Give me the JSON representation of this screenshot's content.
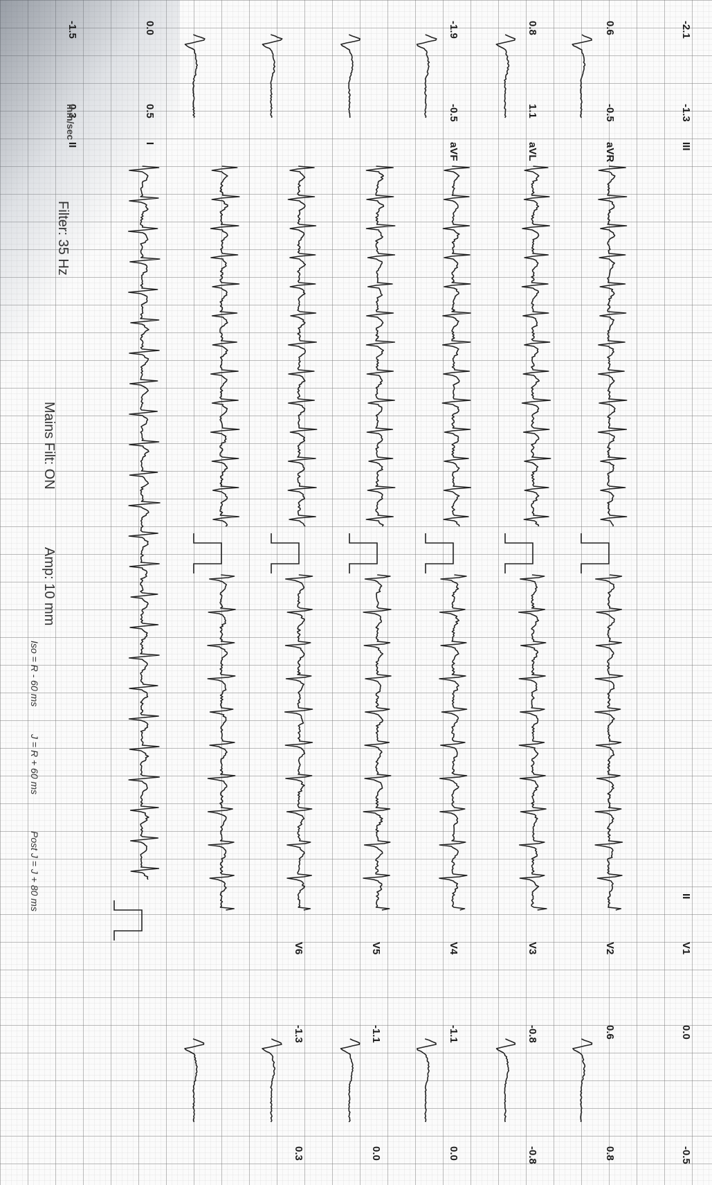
{
  "leads": {
    "I": {
      "label": "I",
      "val_a": "0.0",
      "val_b": "0.5"
    },
    "II": {
      "label": "II",
      "val_a": "-1.5",
      "val_b": "0.3"
    },
    "III": {
      "label": "III",
      "val_a": "-2.1",
      "val_b": "-1.3"
    },
    "aVR": {
      "label": "aVR",
      "val_a": "0.6",
      "val_b": "-0.5"
    },
    "aVL": {
      "label": "aVL",
      "val_a": "0.8",
      "val_b": "1.1"
    },
    "aVF": {
      "label": "aVF",
      "val_a": "-1.9",
      "val_b": "-0.5"
    },
    "V1": {
      "label": "V1",
      "val_a": "0.0",
      "val_b": "-0.5"
    },
    "V2": {
      "label": "V2",
      "val_a": "0.6",
      "val_b": "0.8"
    },
    "V3": {
      "label": "V3",
      "val_a": "-0.8",
      "val_b": "-0.8"
    },
    "V4": {
      "label": "V4",
      "val_a": "-1.1",
      "val_b": "0.0"
    },
    "V5": {
      "label": "V5",
      "val_a": "-1.1",
      "val_b": "0.0"
    },
    "V6": {
      "label": "V6",
      "val_a": "-1.3",
      "val_b": "0.3"
    }
  },
  "rhythm_label": "II",
  "footer": {
    "filter": "Filter: 35 Hz",
    "mains": "Mains Filt: ON",
    "amp": "Amp: 10 mm"
  },
  "measurements": {
    "iso": "Iso = R - 60 ms",
    "j": "J = R + 60 ms",
    "post_j": "Post J = J + 80 ms"
  },
  "partial_text": "mm/sec",
  "colors": {
    "trace": "#222222",
    "grid": "#8a8a8a"
  }
}
